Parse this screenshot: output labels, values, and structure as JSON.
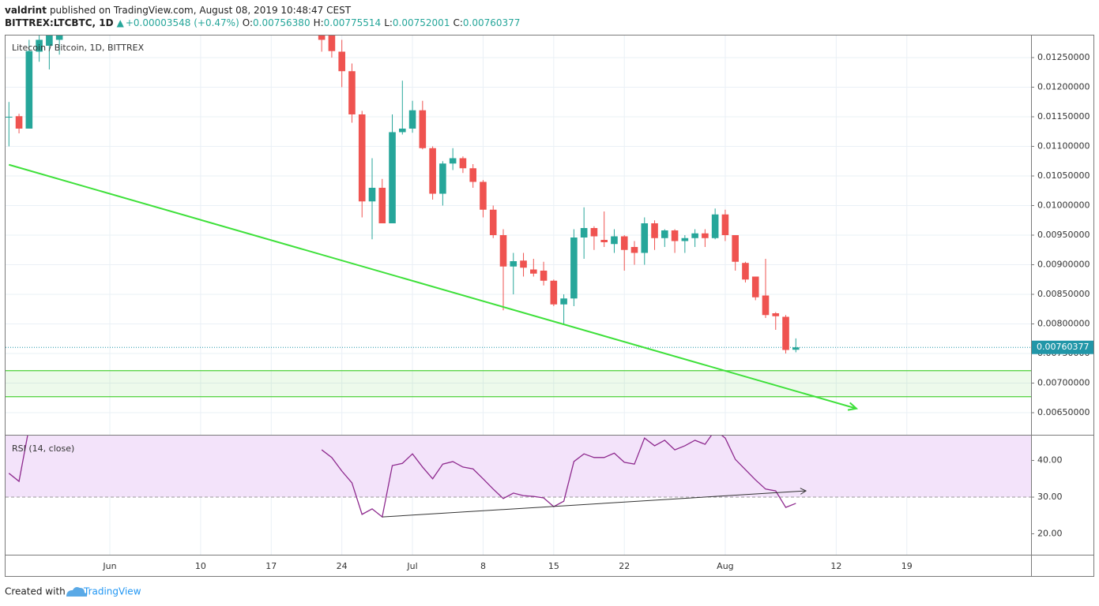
{
  "header": {
    "author": "valdrint",
    "published": "published on TradingView.com, August 08, 2019 10:48:47 CEST",
    "symbol": "BITTREX:LTCBTC, 1D",
    "arrow": "▲",
    "change": "+0.00003548 (+0.47%)",
    "ohlc": [
      {
        "label": "O:",
        "value": "0.00756380"
      },
      {
        "label": "H:",
        "value": "0.00775514"
      },
      {
        "label": "L:",
        "value": "0.00752001"
      },
      {
        "label": "C:",
        "value": "0.00760377"
      }
    ]
  },
  "footer": {
    "created": "Created with",
    "brand": "TradingView"
  },
  "x_axis": {
    "xlim": [
      "2019-05-22",
      "2019-08-31"
    ],
    "xticks": [
      {
        "value": "2019-06-01",
        "label": "Jun"
      },
      {
        "value": "2019-06-10",
        "label": "10"
      },
      {
        "value": "2019-06-17",
        "label": "17"
      },
      {
        "value": "2019-06-24",
        "label": "24"
      },
      {
        "value": "2019-07-01",
        "label": "Jul"
      },
      {
        "value": "2019-07-08",
        "label": "8"
      },
      {
        "value": "2019-07-15",
        "label": "15"
      },
      {
        "value": "2019-07-22",
        "label": "22"
      },
      {
        "value": "2019-08-01",
        "label": "Aug"
      },
      {
        "value": "2019-08-12",
        "label": "12"
      },
      {
        "value": "2019-08-19",
        "label": "19"
      }
    ]
  },
  "chart_data": [
    {
      "type": "candlestick",
      "title": "Litecoin / Bitcoin, 1D, BITTREX",
      "x": [
        "2019-05-22",
        "2019-05-23",
        "2019-05-24",
        "2019-05-25",
        "2019-05-26",
        "2019-05-27",
        "2019-06-22",
        "2019-06-23",
        "2019-06-24",
        "2019-06-25",
        "2019-06-26",
        "2019-06-27",
        "2019-06-28",
        "2019-06-29",
        "2019-06-30",
        "2019-07-01",
        "2019-07-02",
        "2019-07-03",
        "2019-07-04",
        "2019-07-05",
        "2019-07-06",
        "2019-07-07",
        "2019-07-08",
        "2019-07-09",
        "2019-07-10",
        "2019-07-11",
        "2019-07-12",
        "2019-07-13",
        "2019-07-14",
        "2019-07-15",
        "2019-07-16",
        "2019-07-17",
        "2019-07-18",
        "2019-07-19",
        "2019-07-20",
        "2019-07-21",
        "2019-07-22",
        "2019-07-23",
        "2019-07-24",
        "2019-07-25",
        "2019-07-26",
        "2019-07-27",
        "2019-07-28",
        "2019-07-29",
        "2019-07-30",
        "2019-07-31",
        "2019-08-01",
        "2019-08-02",
        "2019-08-03",
        "2019-08-04",
        "2019-08-05",
        "2019-08-06",
        "2019-08-07",
        "2019-08-08"
      ],
      "open": [
        0.0115,
        0.01151,
        0.0113,
        0.0126,
        0.0127,
        0.0128,
        0.0133,
        0.0129,
        0.0126,
        0.01227,
        0.01154,
        0.01007,
        0.0103,
        0.0097,
        0.01124,
        0.0113,
        0.01161,
        0.01097,
        0.0102,
        0.01071,
        0.0108,
        0.01063,
        0.0104,
        0.00993,
        0.0095,
        0.00897,
        0.00907,
        0.00892,
        0.0089,
        0.00873,
        0.00833,
        0.00843,
        0.00946,
        0.00962,
        0.00942,
        0.00935,
        0.00948,
        0.0093,
        0.0092,
        0.0097,
        0.00945,
        0.00958,
        0.0094,
        0.00945,
        0.00953,
        0.00945,
        0.00985,
        0.0095,
        0.00903,
        0.0088,
        0.00848,
        0.00818,
        0.00812,
        0.0075638
      ],
      "high": [
        0.01175,
        0.01155,
        0.0128,
        0.013,
        0.0131,
        0.0131,
        0.0134,
        0.013,
        0.0128,
        0.0124,
        0.0116,
        0.0108,
        0.01045,
        0.01154,
        0.01211,
        0.01177,
        0.01177,
        0.011,
        0.01075,
        0.01097,
        0.01083,
        0.0107,
        0.01043,
        0.01,
        0.0096,
        0.0092,
        0.0092,
        0.0091,
        0.00905,
        0.00875,
        0.0085,
        0.0096,
        0.00997,
        0.00965,
        0.0099,
        0.0096,
        0.0095,
        0.0094,
        0.0098,
        0.00975,
        0.0096,
        0.0096,
        0.0095,
        0.0096,
        0.0096,
        0.00995,
        0.00993,
        0.0095,
        0.00905,
        0.0088,
        0.0091,
        0.0082,
        0.00815,
        0.00775514
      ],
      "low": [
        0.011,
        0.01122,
        0.0113,
        0.01243,
        0.0123,
        0.01255,
        0.0126,
        0.0125,
        0.012,
        0.0114,
        0.0098,
        0.00943,
        0.0097,
        0.0097,
        0.0112,
        0.01123,
        0.01095,
        0.0101,
        0.01,
        0.0106,
        0.01055,
        0.0103,
        0.0098,
        0.00945,
        0.00823,
        0.0085,
        0.0088,
        0.0088,
        0.00865,
        0.0083,
        0.008,
        0.0083,
        0.0091,
        0.00925,
        0.0093,
        0.0092,
        0.0089,
        0.009,
        0.009,
        0.00925,
        0.0093,
        0.0092,
        0.0092,
        0.0093,
        0.0093,
        0.00943,
        0.0094,
        0.0089,
        0.0087,
        0.0084,
        0.0081,
        0.0079,
        0.0075,
        0.00752001
      ],
      "close": [
        0.0115,
        0.0113,
        0.01261,
        0.0128,
        0.0129,
        0.0129,
        0.0128,
        0.01261,
        0.01227,
        0.01154,
        0.01007,
        0.0103,
        0.0097,
        0.01124,
        0.0113,
        0.01161,
        0.01097,
        0.0102,
        0.01071,
        0.0108,
        0.01063,
        0.0104,
        0.00993,
        0.0095,
        0.00897,
        0.00906,
        0.00895,
        0.00885,
        0.00873,
        0.00833,
        0.00843,
        0.00946,
        0.00962,
        0.00948,
        0.00938,
        0.00948,
        0.00925,
        0.0092,
        0.0097,
        0.00945,
        0.00958,
        0.0094,
        0.00945,
        0.00953,
        0.00945,
        0.00985,
        0.0095,
        0.00905,
        0.00875,
        0.00845,
        0.00815,
        0.00813,
        0.00756,
        0.00760377
      ],
      "up_color": "#26a69a",
      "down_color": "#ef5350",
      "ylim": [
        0.006127,
        0.012873
      ],
      "yticks": [
        {
          "value": 0.0065,
          "label": "0.00650000"
        },
        {
          "value": 0.007,
          "label": "0.00700000"
        },
        {
          "value": 0.0075,
          "label": "0.00750000"
        },
        {
          "value": 0.008,
          "label": "0.00800000"
        },
        {
          "value": 0.0085,
          "label": "0.00850000"
        },
        {
          "value": 0.009,
          "label": "0.00900000"
        },
        {
          "value": 0.0095,
          "label": "0.00950000"
        },
        {
          "value": 0.01,
          "label": "0.01000000"
        },
        {
          "value": 0.0105,
          "label": "0.01050000"
        },
        {
          "value": 0.011,
          "label": "0.01100000"
        },
        {
          "value": 0.0115,
          "label": "0.01150000"
        },
        {
          "value": 0.012,
          "label": "0.01200000"
        },
        {
          "value": 0.0125,
          "label": "0.01250000"
        }
      ],
      "grid": true,
      "last_price": 0.00760377,
      "last_price_color": "#2196a8",
      "support_zone": [
        0.00677,
        0.00721
      ],
      "support_color": "#4cd137",
      "trendline": {
        "x": [
          "2019-05-22",
          "2019-08-14"
        ],
        "y": [
          0.01069,
          0.00657
        ],
        "color": "#3ee03a"
      }
    },
    {
      "type": "line",
      "title": "RSI (14, close)",
      "x": [
        "2019-05-22",
        "2019-05-23",
        "2019-05-24",
        "2019-05-25",
        "2019-05-26",
        "2019-05-27",
        "2019-06-22",
        "2019-06-23",
        "2019-06-24",
        "2019-06-25",
        "2019-06-26",
        "2019-06-27",
        "2019-06-28",
        "2019-06-29",
        "2019-06-30",
        "2019-07-01",
        "2019-07-02",
        "2019-07-03",
        "2019-07-04",
        "2019-07-05",
        "2019-07-06",
        "2019-07-07",
        "2019-07-08",
        "2019-07-09",
        "2019-07-10",
        "2019-07-11",
        "2019-07-12",
        "2019-07-13",
        "2019-07-14",
        "2019-07-15",
        "2019-07-16",
        "2019-07-17",
        "2019-07-18",
        "2019-07-19",
        "2019-07-20",
        "2019-07-21",
        "2019-07-22",
        "2019-07-23",
        "2019-07-24",
        "2019-07-25",
        "2019-07-26",
        "2019-07-27",
        "2019-07-28",
        "2019-07-29",
        "2019-07-30",
        "2019-07-31",
        "2019-08-01",
        "2019-08-02",
        "2019-08-03",
        "2019-08-04",
        "2019-08-05",
        "2019-08-06",
        "2019-08-07",
        "2019-08-08"
      ],
      "values": [
        36.5,
        34.3,
        49,
        null,
        null,
        null,
        42.9,
        40.8,
        37.1,
        33.9,
        25.3,
        26.8,
        24.6,
        38.6,
        39.2,
        41.8,
        38.2,
        35,
        39,
        39.7,
        38.2,
        37.7,
        35,
        32.2,
        29.6,
        31.1,
        30.4,
        30.2,
        29.8,
        27.4,
        28.9,
        39.7,
        41.8,
        40.8,
        40.8,
        42,
        39.5,
        39,
        46.1,
        44,
        45.5,
        42.9,
        44,
        45.5,
        44.4,
        48.3,
        46.1,
        40.3,
        37.5,
        34.7,
        32.2,
        31.7,
        27.2,
        28.3
      ],
      "color": "#8e2a8e",
      "ylim": [
        14.3,
        47
      ],
      "yticks": [
        {
          "value": 20,
          "label": "20.00"
        },
        {
          "value": 30,
          "label": "30.00"
        },
        {
          "value": 40,
          "label": "40.00"
        }
      ],
      "band": [
        30,
        70
      ],
      "band_color": "#f3e3fa",
      "trendline": {
        "x": [
          "2019-06-28",
          "2019-08-09"
        ],
        "y": [
          24.6,
          31.7
        ],
        "color": "#333333"
      }
    }
  ]
}
